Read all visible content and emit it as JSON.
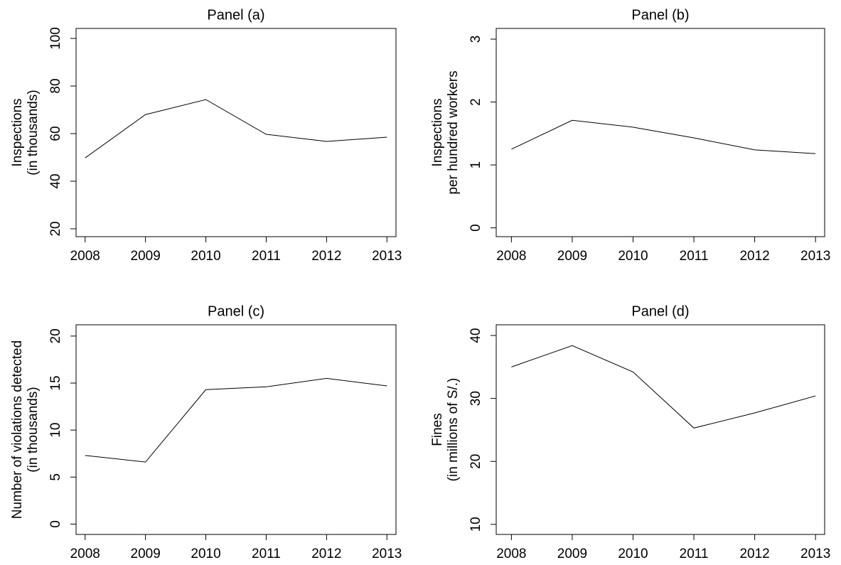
{
  "chart_data": [
    {
      "type": "line",
      "title": "Panel (a)",
      "ylabel": [
        "Inspections",
        "(in thousands)"
      ],
      "x": [
        2008,
        2009,
        2010,
        2011,
        2012,
        2013
      ],
      "xlim": [
        2007.85,
        2013.15
      ],
      "xticks": [
        2008,
        2009,
        2010,
        2011,
        2012,
        2013
      ],
      "series": [
        {
          "color": "#000000",
          "values": [
            49.8,
            68,
            74.3,
            59.7,
            56.7,
            58.5
          ]
        }
      ],
      "ylim": [
        16.7,
        104.2
      ],
      "yticks": [
        20,
        40,
        60,
        80,
        100
      ]
    },
    {
      "type": "line",
      "title": "Panel (b)",
      "ylabel": [
        "Inspections",
        "per hundred workers"
      ],
      "x": [
        2008,
        2009,
        2010,
        2011,
        2012,
        2013
      ],
      "xlim": [
        2007.75,
        2013.15
      ],
      "xticks": [
        2008,
        2009,
        2010,
        2011,
        2012,
        2013
      ],
      "series": [
        {
          "color": "#000000",
          "values": [
            1.25,
            1.71,
            1.6,
            1.43,
            1.24,
            1.18
          ]
        }
      ],
      "ylim": [
        -0.14,
        3.17
      ],
      "yticks": [
        0,
        1,
        2,
        3
      ]
    },
    {
      "type": "line",
      "title": "Panel (c)",
      "ylabel": [
        "Number of violations detected",
        "(in thousands)"
      ],
      "x": [
        2008,
        2009,
        2010,
        2011,
        2012,
        2013
      ],
      "xlim": [
        2007.85,
        2013.15
      ],
      "xticks": [
        2008,
        2009,
        2010,
        2011,
        2012,
        2013
      ],
      "series": [
        {
          "color": "#000000",
          "values": [
            7.3,
            6.6,
            14.3,
            14.6,
            15.5,
            14.7
          ]
        }
      ],
      "ylim": [
        -1.1,
        21.2
      ],
      "yticks": [
        0,
        5,
        10,
        15,
        20
      ]
    },
    {
      "type": "line",
      "title": "Panel (d)",
      "ylabel": [
        "Fines",
        "(in millions of S/.)"
      ],
      "x": [
        2008,
        2009,
        2010,
        2011,
        2012,
        2013
      ],
      "xlim": [
        2007.75,
        2013.15
      ],
      "xticks": [
        2008,
        2009,
        2010,
        2011,
        2012,
        2013
      ],
      "series": [
        {
          "color": "#000000",
          "values": [
            35,
            38.4,
            34.2,
            25.3,
            27.7,
            30.4
          ]
        }
      ],
      "ylim": [
        8.4,
        41.7
      ],
      "yticks": [
        10,
        20,
        30,
        40
      ]
    }
  ]
}
